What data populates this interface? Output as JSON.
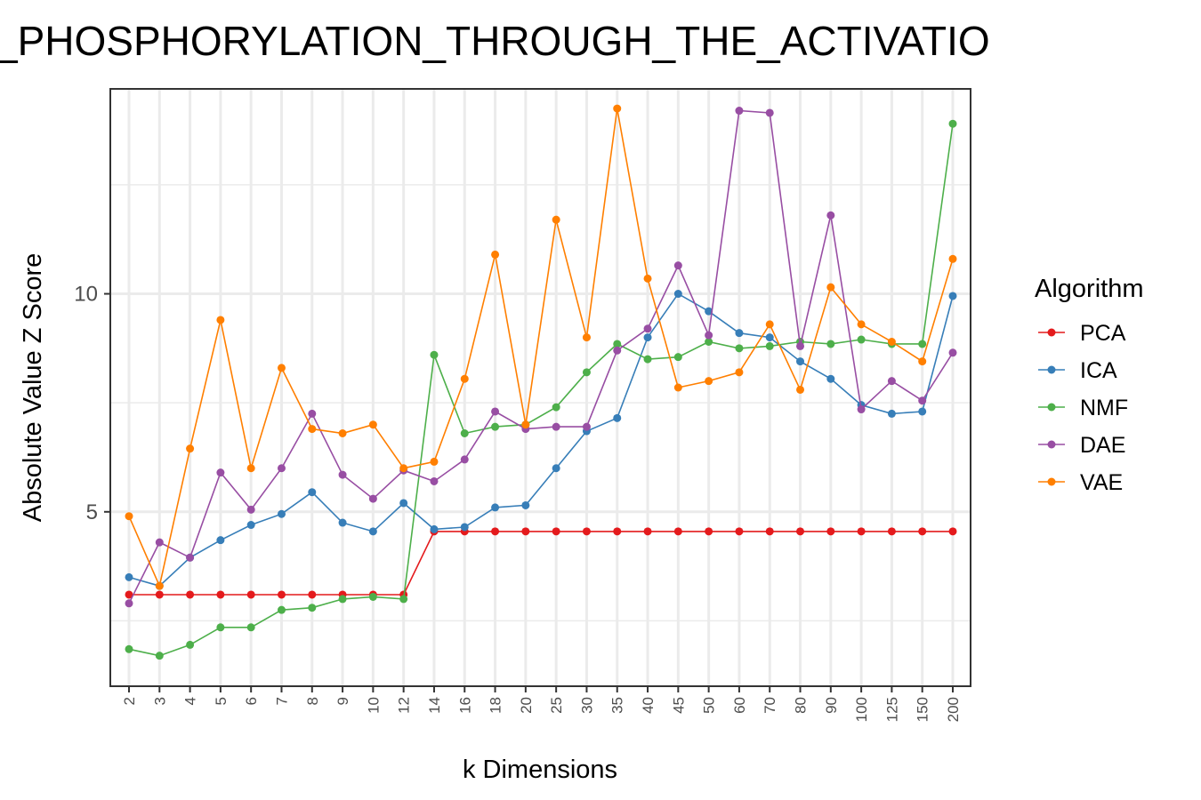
{
  "chart_data": {
    "type": "line",
    "title": "_PHOSPHORYLATION_THROUGH_THE_ACTIVATIO",
    "xlabel": "k Dimensions",
    "ylabel": "Absolute Value Z Score",
    "categories": [
      "2",
      "3",
      "4",
      "5",
      "6",
      "7",
      "8",
      "9",
      "10",
      "12",
      "14",
      "16",
      "18",
      "20",
      "25",
      "30",
      "35",
      "40",
      "45",
      "50",
      "60",
      "70",
      "80",
      "90",
      "100",
      "125",
      "150",
      "200"
    ],
    "y_ticks": [
      5,
      10
    ],
    "ylim": [
      1,
      14.7
    ],
    "grid": true,
    "legend": {
      "title": "Algorithm",
      "position": "right"
    },
    "series": [
      {
        "name": "PCA",
        "color": "#E41A1C",
        "values": [
          3.1,
          3.1,
          3.1,
          3.1,
          3.1,
          3.1,
          3.1,
          3.1,
          3.1,
          3.1,
          4.55,
          4.55,
          4.55,
          4.55,
          4.55,
          4.55,
          4.55,
          4.55,
          4.55,
          4.55,
          4.55,
          4.55,
          4.55,
          4.55,
          4.55,
          4.55,
          4.55,
          4.55
        ]
      },
      {
        "name": "ICA",
        "color": "#377EB8",
        "values": [
          3.5,
          3.3,
          3.95,
          4.35,
          4.7,
          4.95,
          5.45,
          4.75,
          4.55,
          5.2,
          4.6,
          4.65,
          5.1,
          5.15,
          6.0,
          6.85,
          7.15,
          9.0,
          10.0,
          9.6,
          9.1,
          9.0,
          8.45,
          8.05,
          7.45,
          7.25,
          7.3,
          9.95
        ]
      },
      {
        "name": "NMF",
        "color": "#4DAF4A",
        "values": [
          1.85,
          1.7,
          1.95,
          2.35,
          2.35,
          2.75,
          2.8,
          3.0,
          3.05,
          3.0,
          8.6,
          6.8,
          6.95,
          7.0,
          7.4,
          8.2,
          8.85,
          8.5,
          8.55,
          8.9,
          8.75,
          8.8,
          8.9,
          8.85,
          8.95,
          8.85,
          8.85,
          13.9
        ]
      },
      {
        "name": "DAE",
        "color": "#984EA3",
        "values": [
          2.9,
          4.3,
          3.95,
          5.9,
          5.05,
          6.0,
          7.25,
          5.85,
          5.3,
          5.95,
          5.7,
          6.2,
          7.3,
          6.9,
          6.95,
          6.95,
          8.7,
          9.2,
          10.65,
          9.05,
          14.2,
          14.15,
          8.8,
          11.8,
          7.35,
          8.0,
          7.55,
          8.65
        ]
      },
      {
        "name": "VAE",
        "color": "#FF7F00",
        "values": [
          4.9,
          3.3,
          6.45,
          9.4,
          6.0,
          8.3,
          6.9,
          6.8,
          7.0,
          6.0,
          6.15,
          8.05,
          10.9,
          7.0,
          11.7,
          9.0,
          14.25,
          10.35,
          7.85,
          8.0,
          8.2,
          9.3,
          7.8,
          10.15,
          9.3,
          8.9,
          8.45,
          10.8
        ]
      }
    ]
  }
}
